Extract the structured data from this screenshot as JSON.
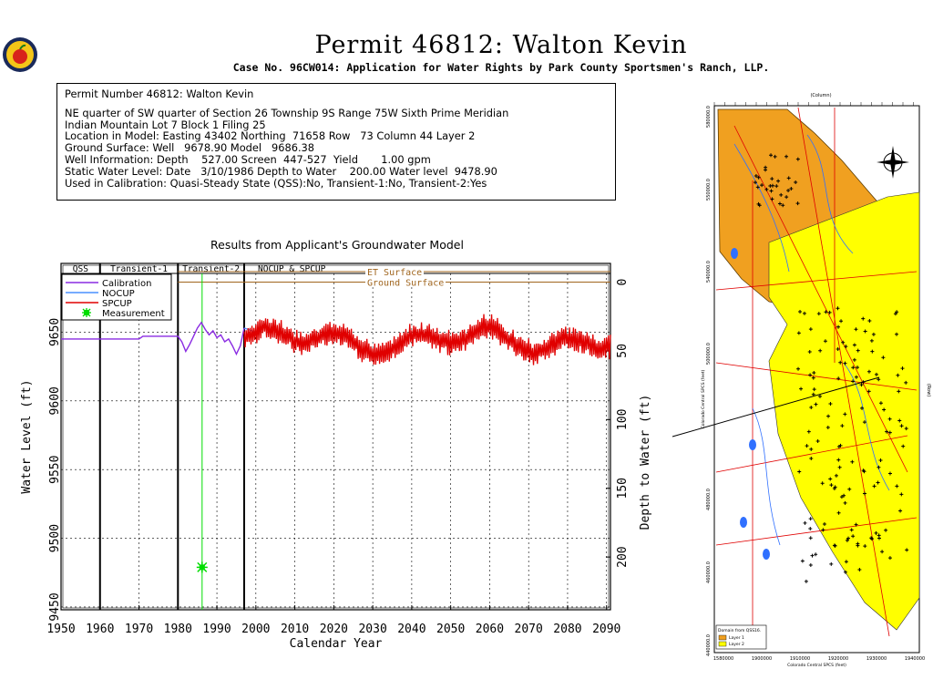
{
  "header": {
    "title": "Permit 46812:  Walton Kevin",
    "subtitle": "Case No. 96CW014: Application for Water Rights by Park County Sportsmen's Ranch, LLP."
  },
  "info": {
    "heading": "Permit Number 46812: Walton Kevin",
    "lines": [
      "NE quarter of SW quarter of Section 26 Township 9S Range 75W Sixth Prime Meridian",
      "Indian Mountain Lot 7 Block 1 Filing 25",
      "Location in Model: Easting 43402 Northing  71658 Row   73 Column 44 Layer 2",
      "Ground Surface: Well   9678.90 Model   9686.38",
      "Well Information: Depth    527.00 Screen  447-527  Yield       1.00 gpm",
      "Static Water Level: Date   3/10/1986 Depth to Water    200.00 Water level  9478.90",
      "Used in Calibration: Quasi-Steady State (QSS):No, Transient-1:No, Transient-2:Yes"
    ]
  },
  "colors": {
    "calibration": "#8a2be2",
    "nocup": "#4a90ff",
    "spcup": "#e00000",
    "measurement": "#00dd00",
    "surface": "#a0651e",
    "map_orange": "#f0a020",
    "map_yellow": "#ffff00"
  },
  "chart_data": {
    "type": "line",
    "title": "Results from Applicant's Groundwater Model",
    "xlabel": "Calendar Year",
    "ylabel": "Water Level (ft)",
    "y2label": "Depth to Water (ft)",
    "xlim": [
      1950,
      2091
    ],
    "ylim": [
      9448,
      9700
    ],
    "x_ticks": [
      1950,
      1960,
      1970,
      1980,
      1990,
      2000,
      2010,
      2020,
      2030,
      2040,
      2050,
      2060,
      2070,
      2080,
      2090
    ],
    "y_ticks": [
      9450,
      9500,
      9550,
      9600,
      9650
    ],
    "y2_ticks": [
      0,
      50,
      100,
      150,
      200
    ],
    "grid": true,
    "periods": [
      {
        "label": "QSS",
        "start": 1950,
        "end": 1960
      },
      {
        "label": "Transient-1",
        "start": 1960,
        "end": 1980
      },
      {
        "label": "Transient-2",
        "start": 1980,
        "end": 1997
      },
      {
        "label": "NOCUP  &  SPCUP",
        "start": 1997,
        "end": 2091
      }
    ],
    "reference_lines": [
      {
        "label": "ET Surface",
        "value": 9694
      },
      {
        "label": "Ground Surface",
        "value": 9686.38
      }
    ],
    "legend": [
      "Calibration",
      "NOCUP",
      "SPCUP",
      "Measurement"
    ],
    "series": [
      {
        "name": "Calibration",
        "x": [
          1950,
          1970,
          1971,
          1975,
          1980,
          1981,
          1982,
          1983,
          1984,
          1985,
          1986,
          1987,
          1988,
          1989,
          1990,
          1991,
          1992,
          1993,
          1994,
          1995,
          1996,
          1997
        ],
        "y": [
          9645,
          9645,
          9647,
          9647,
          9647,
          9643,
          9636,
          9641,
          9647,
          9653,
          9657,
          9652,
          9648,
          9651,
          9646,
          9648,
          9643,
          9645,
          9640,
          9634,
          9640,
          9653
        ]
      },
      {
        "name": "NOCUP",
        "x": [
          1997,
          2000
        ],
        "y": [
          9653,
          9650
        ]
      },
      {
        "name": "SPCUP",
        "seed_years": [
          1997,
          2091
        ],
        "base": 9645,
        "amplitude": 14
      }
    ],
    "measurement": {
      "x": 1986.2,
      "y": 9478.9
    }
  },
  "map": {
    "column_label": "(Column)",
    "row_label": "(Row)",
    "x_axis_label": "Colorado Central SPCS (feet)",
    "y_axis_label": "Colorado Central SPCS (feet)",
    "x_ticks": [
      "1580000",
      "1900000",
      "1910000",
      "1920000",
      "1930000",
      "1940000"
    ],
    "y_ticks": [
      "580000.0",
      "550000.0",
      "540000.0",
      "500000.0",
      "480000.0",
      "460000.0",
      "440000.0"
    ],
    "legend_title": "Domain from QSS16.",
    "legend_items": [
      "Layer 1",
      "Layer 2"
    ]
  }
}
